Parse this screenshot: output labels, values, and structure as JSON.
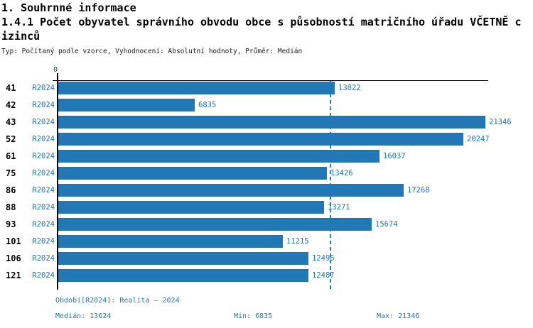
{
  "header": {
    "section_title": "1. Souhrnné informace",
    "chart_title_line1": "1.4.1 Počet obyvatel správního obvodu obce s působností matričního úřadu VČETNĚ c",
    "chart_title_line2": "izinců",
    "subtitle": "Typ: Počítaný podle vzorce, Vyhodnocení: Absolutní hodnoty, Průměr: Medián"
  },
  "chart_data": {
    "type": "bar",
    "orientation": "horizontal",
    "title": "1.4.1 Počet obyvatel správního obvodu obce s působností matričního úřadu VČETNĚ cizinců",
    "series_label": "R2024",
    "categories": [
      "41",
      "42",
      "43",
      "52",
      "61",
      "75",
      "86",
      "88",
      "93",
      "101",
      "106",
      "121"
    ],
    "values": [
      13822,
      6835,
      21346,
      20247,
      16037,
      13426,
      17268,
      13271,
      15674,
      11215,
      12496,
      12487
    ],
    "origin_tick_label": "0",
    "median_reference_line": 13624,
    "xlim": [
      0,
      21450
    ],
    "grid": false,
    "legend": "none",
    "bar_color": "#2278b5",
    "axis_color": "#000000",
    "median_line_color": "#2278b5"
  },
  "footer": {
    "period": "Období[R2024]: Realita – 2024",
    "median": "Medián: 13624",
    "min": "Min: 6835",
    "max": "Max: 21346"
  }
}
